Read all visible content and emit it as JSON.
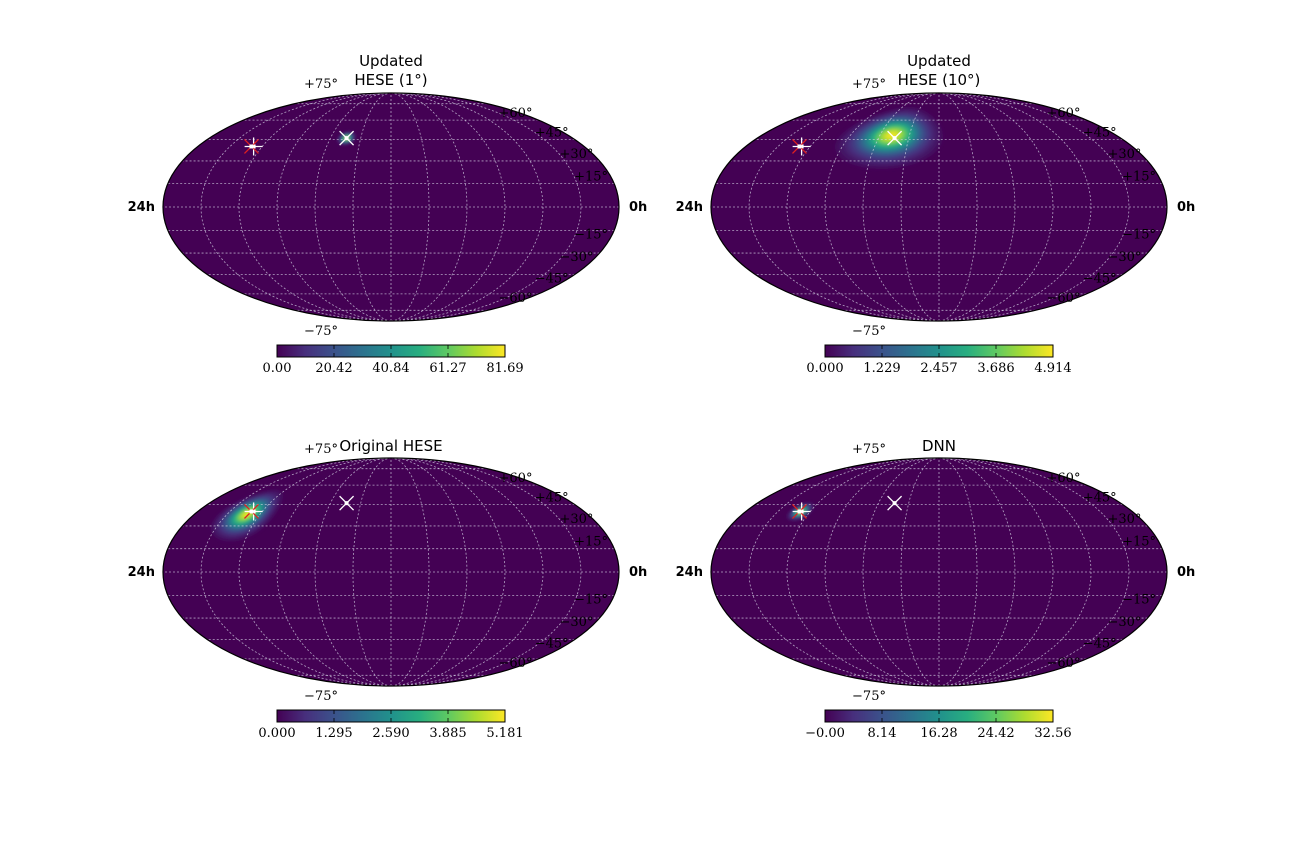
{
  "chart_data": [
    {
      "type": "heatmap",
      "projection": "mollweide",
      "title_lines": [
        "Updated",
        "HESE (1°)"
      ],
      "ra_labels": {
        "left": "24h",
        "right": "0h"
      },
      "dec_labels": [
        "+75°",
        "+60°",
        "+45°",
        "+30°",
        "+15°",
        "−15°",
        "−30°",
        "−45°",
        "−60°",
        "−75°"
      ],
      "colorbar": {
        "colormap": "viridis",
        "ticks": [
          "0.00",
          "20.42",
          "40.84",
          "61.27",
          "81.69"
        ],
        "range": [
          0,
          81.69
        ]
      },
      "hotspot": {
        "ra_deg": 136,
        "dec_deg": 46,
        "sigma_ra_deg": 3.5,
        "sigma_dec_deg": 2.0,
        "peak": 81.69
      },
      "markers": [
        {
          "symbol": "x",
          "ra_deg": 136,
          "dec_deg": 46,
          "color": "#ffffff"
        },
        {
          "symbol": "+",
          "ra_deg": 52,
          "dec_deg": 40,
          "color": "#ffffff"
        },
        {
          "symbol": "x",
          "ra_deg": 50,
          "dec_deg": 40,
          "color": "#e02020"
        }
      ]
    },
    {
      "type": "heatmap",
      "projection": "mollweide",
      "title_lines": [
        "Updated",
        "HESE (10°)"
      ],
      "ra_labels": {
        "left": "24h",
        "right": "0h"
      },
      "dec_labels": [
        "+75°",
        "+60°",
        "+45°",
        "+30°",
        "+15°",
        "−15°",
        "−30°",
        "−45°",
        "−60°",
        "−75°"
      ],
      "colorbar": {
        "colormap": "viridis",
        "ticks": [
          "0.000",
          "1.229",
          "2.457",
          "3.686",
          "4.914"
        ],
        "range": [
          0,
          4.914
        ]
      },
      "hotspot": {
        "ra_deg": 132,
        "dec_deg": 48,
        "sigma_ra_deg": 20,
        "sigma_dec_deg": 9,
        "peak": 4.914
      },
      "markers": [
        {
          "symbol": "x",
          "ra_deg": 136,
          "dec_deg": 46,
          "color": "#ffffff"
        },
        {
          "symbol": "+",
          "ra_deg": 52,
          "dec_deg": 40,
          "color": "#ffffff"
        },
        {
          "symbol": "x",
          "ra_deg": 50,
          "dec_deg": 40,
          "color": "#e02020"
        }
      ]
    },
    {
      "type": "heatmap",
      "projection": "mollweide",
      "title_lines": [
        "Original HESE"
      ],
      "ra_labels": {
        "left": "24h",
        "right": "0h"
      },
      "dec_labels": [
        "+75°",
        "+60°",
        "+45°",
        "+30°",
        "+15°",
        "−15°",
        "−30°",
        "−45°",
        "−60°",
        "−75°"
      ],
      "colorbar": {
        "colormap": "viridis",
        "ticks": [
          "0.000",
          "1.295",
          "2.590",
          "3.885",
          "5.181"
        ],
        "range": [
          0,
          5.181
        ]
      },
      "hotspot": {
        "ra_deg": 48,
        "dec_deg": 38,
        "sigma_ra_deg": 10,
        "sigma_dec_deg": 7,
        "peak": 5.181
      },
      "markers": [
        {
          "symbol": "x",
          "ra_deg": 136,
          "dec_deg": 46,
          "color": "#ffffff"
        },
        {
          "symbol": "+",
          "ra_deg": 52,
          "dec_deg": 40,
          "color": "#ffffff"
        },
        {
          "symbol": "x",
          "ra_deg": 50,
          "dec_deg": 40,
          "color": "#e02020"
        }
      ]
    },
    {
      "type": "heatmap",
      "projection": "mollweide",
      "title_lines": [
        "DNN"
      ],
      "ra_labels": {
        "left": "24h",
        "right": "0h"
      },
      "dec_labels": [
        "+75°",
        "+60°",
        "+45°",
        "+30°",
        "+15°",
        "−15°",
        "−30°",
        "−45°",
        "−60°",
        "−75°"
      ],
      "colorbar": {
        "colormap": "viridis",
        "ticks": [
          "−0.00",
          "8.14",
          "16.28",
          "24.42",
          "32.56"
        ],
        "range": [
          0,
          32.56
        ]
      },
      "hotspot": {
        "ra_deg": 51,
        "dec_deg": 40,
        "sigma_ra_deg": 4,
        "sigma_dec_deg": 2.5,
        "peak": 32.56
      },
      "markers": [
        {
          "symbol": "x",
          "ra_deg": 136,
          "dec_deg": 46,
          "color": "#ffffff"
        },
        {
          "symbol": "+",
          "ra_deg": 52,
          "dec_deg": 40,
          "color": "#ffffff"
        },
        {
          "symbol": "x",
          "ra_deg": 50,
          "dec_deg": 40,
          "color": "#e02020"
        }
      ]
    }
  ]
}
